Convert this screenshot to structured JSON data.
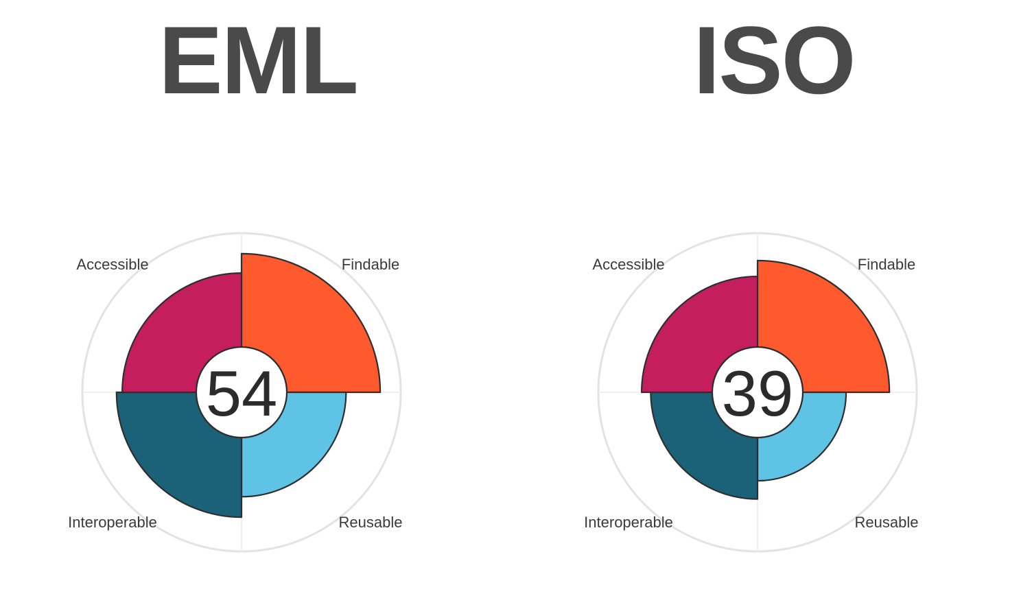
{
  "chart_data": [
    {
      "type": "polar-bar",
      "title": "EML",
      "score": "54",
      "max": 100,
      "categories": [
        "Findable",
        "Reusable",
        "Interoperable",
        "Accessible"
      ],
      "values": [
        82,
        52,
        70,
        65
      ],
      "colors": {
        "Findable": "#ff5a2e",
        "Reusable": "#5ec3e4",
        "Interoperable": "#1b6278",
        "Accessible": "#c41e5e"
      },
      "grid": true
    },
    {
      "type": "polar-bar",
      "title": "ISO",
      "score": "39",
      "max": 100,
      "categories": [
        "Findable",
        "Reusable",
        "Interoperable",
        "Accessible"
      ],
      "values": [
        76,
        38,
        54,
        62
      ],
      "colors": {
        "Findable": "#ff5a2e",
        "Reusable": "#5ec3e4",
        "Interoperable": "#1b6278",
        "Accessible": "#c41e5e"
      },
      "grid": true
    }
  ]
}
